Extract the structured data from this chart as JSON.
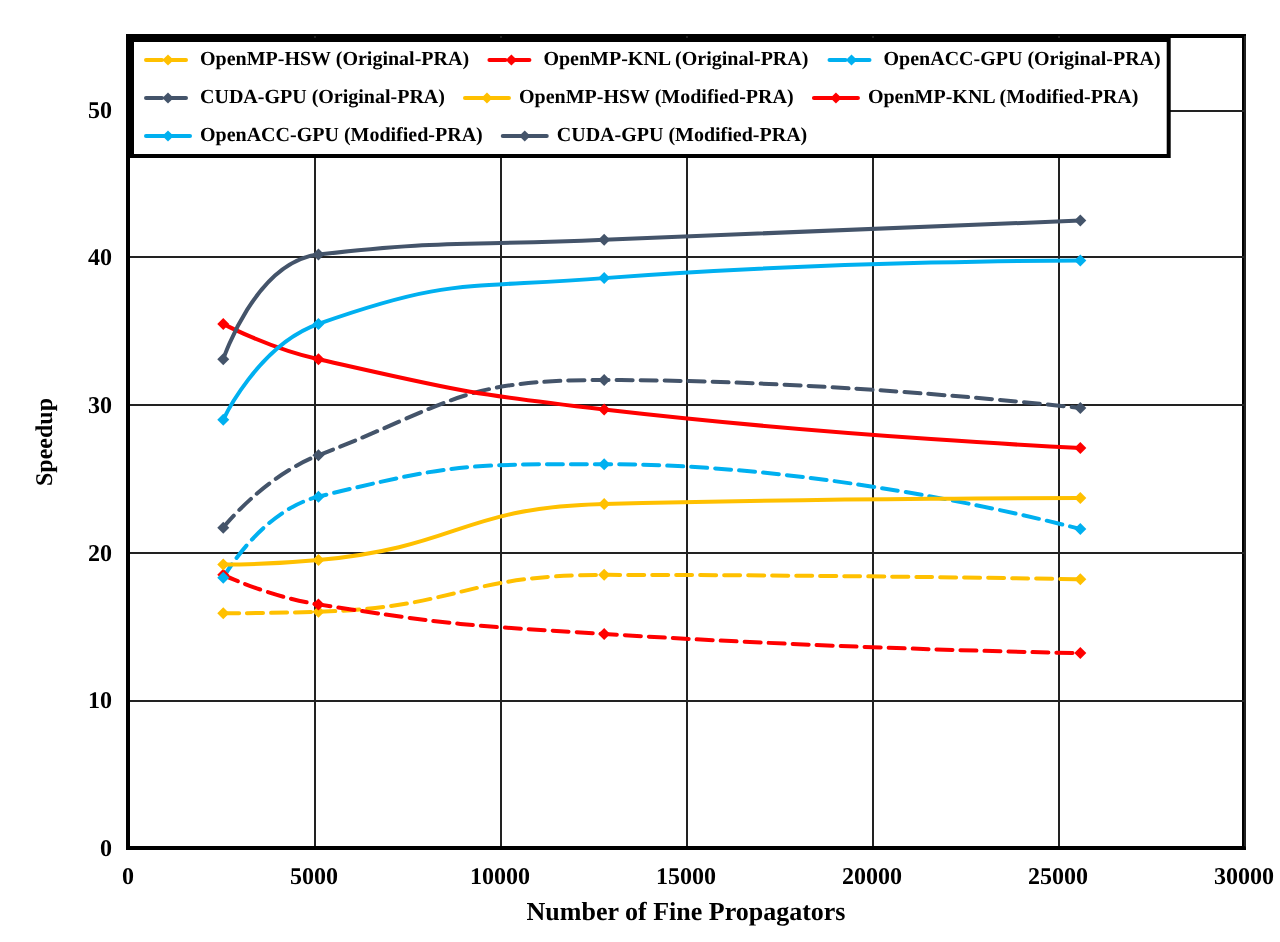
{
  "chart_data": {
    "type": "line",
    "xlabel": "Number of Fine Propagators",
    "ylabel": "Speedup",
    "x": [
      2560,
      5120,
      12800,
      25600
    ],
    "xlim": [
      0,
      30000
    ],
    "xticks": [
      0,
      5000,
      10000,
      15000,
      20000,
      25000,
      30000
    ],
    "ylim": [
      0,
      55
    ],
    "yticks": [
      0,
      10,
      20,
      30,
      40,
      50
    ],
    "grid": true,
    "legend": "top",
    "marker": "diamond",
    "series": [
      {
        "name": "OpenMP-HSW (Original-PRA)",
        "color": "#ffc000",
        "line_style": "dashed",
        "values": [
          15.9,
          16.0,
          18.5,
          18.2
        ]
      },
      {
        "name": "OpenMP-KNL (Original-PRA)",
        "color": "#ff0000",
        "line_style": "dashed",
        "values": [
          18.5,
          16.5,
          14.5,
          13.2
        ]
      },
      {
        "name": "OpenACC-GPU (Original-PRA)",
        "color": "#00b0f0",
        "line_style": "dashed",
        "values": [
          18.3,
          23.8,
          26.0,
          21.6
        ]
      },
      {
        "name": "CUDA-GPU (Original-PRA)",
        "color": "#44546a",
        "line_style": "dashed",
        "values": [
          21.7,
          26.6,
          31.7,
          29.8
        ]
      },
      {
        "name": "OpenMP-HSW (Modified-PRA)",
        "color": "#ffc000",
        "line_style": "solid",
        "values": [
          19.2,
          19.5,
          23.3,
          23.7
        ]
      },
      {
        "name": "OpenMP-KNL (Modified-PRA)",
        "color": "#ff0000",
        "line_style": "solid",
        "values": [
          35.5,
          33.1,
          29.7,
          27.1
        ]
      },
      {
        "name": "OpenACC-GPU (Modified-PRA)",
        "color": "#00b0f0",
        "line_style": "solid",
        "values": [
          29.0,
          35.5,
          38.6,
          39.8
        ]
      },
      {
        "name": "CUDA-GPU (Modified-PRA)",
        "color": "#44546a",
        "line_style": "solid",
        "values": [
          33.1,
          40.2,
          41.2,
          42.5
        ]
      }
    ]
  }
}
